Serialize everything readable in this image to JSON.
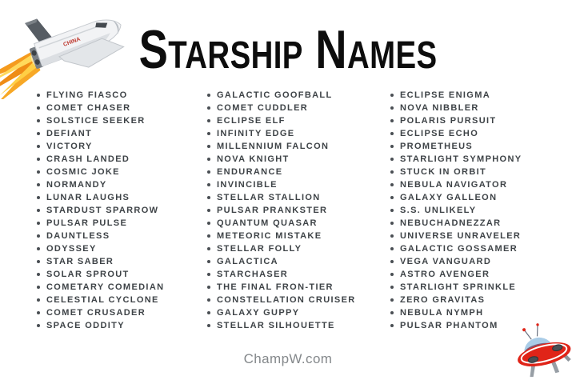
{
  "header": {
    "title": "Starship Names"
  },
  "footer": {
    "site": "ChampW.com"
  },
  "illustrations": {
    "shuttle_icon": "space-shuttle-with-flames",
    "shuttle_marking": "CHINA",
    "ufo_icon": "red-flying-saucer"
  },
  "colors": {
    "background": "#ffffff",
    "title_text": "#0d0d0d",
    "list_text": "#3e4347",
    "footer_text": "#84888b",
    "flame_orange": "#f59b1e",
    "flame_yellow": "#ffd95c",
    "ufo_body_red": "#e02418",
    "ufo_dome_blue": "#a9cce7",
    "ufo_window_purple": "#7b4e68",
    "ufo_leg_gray": "#979ea5"
  },
  "list": {
    "columns": [
      {
        "items": [
          "FLYING FIASCO",
          "COMET CHASER",
          "SOLSTICE SEEKER",
          "DEFIANT",
          "VICTORY",
          "CRASH LANDED",
          "COSMIC JOKE",
          "NORMANDY",
          "LUNAR LAUGHS",
          "STARDUST SPARROW",
          "PULSAR PULSE",
          "DAUNTLESS",
          "ODYSSEY",
          "STAR SABER",
          "SOLAR SPROUT",
          "COMETARY COMEDIAN",
          "CELESTIAL CYCLONE",
          "COMET CRUSADER",
          "SPACE ODDITY"
        ]
      },
      {
        "items": [
          "GALACTIC GOOFBALL",
          "COMET CUDDLER",
          "ECLIPSE ELF",
          "INFINITY EDGE",
          "MILLENNIUM FALCON",
          "NOVA KNIGHT",
          "ENDURANCE",
          "INVINCIBLE",
          "STELLAR STALLION",
          "PULSAR PRANKSTER",
          "QUANTUM QUASAR",
          "METEORIC MISTAKE",
          "STELLAR FOLLY",
          "GALACTICA",
          "STARCHASER",
          "THE FINAL FRON-TIER",
          "CONSTELLATION CRUISER",
          "GALAXY GUPPY",
          "STELLAR SILHOUETTE"
        ]
      },
      {
        "items": [
          "ECLIPSE ENIGMA",
          "NOVA NIBBLER",
          "POLARIS PURSUIT",
          "ECLIPSE ECHO",
          "PROMETHEUS",
          "STARLIGHT SYMPHONY",
          "STUCK IN ORBIT",
          "NEBULA NAVIGATOR",
          "GALAXY GALLEON",
          "S.S. UNLIKELY",
          "NEBUCHADNEZZAR",
          "UNIVERSE UNRAVELER",
          "GALACTIC GOSSAMER",
          "VEGA VANGUARD",
          "ASTRO AVENGER",
          "STARLIGHT SPRINKLE",
          "ZERO GRAVITAS",
          "NEBULA NYMPH",
          "PULSAR PHANTOM"
        ]
      }
    ]
  }
}
